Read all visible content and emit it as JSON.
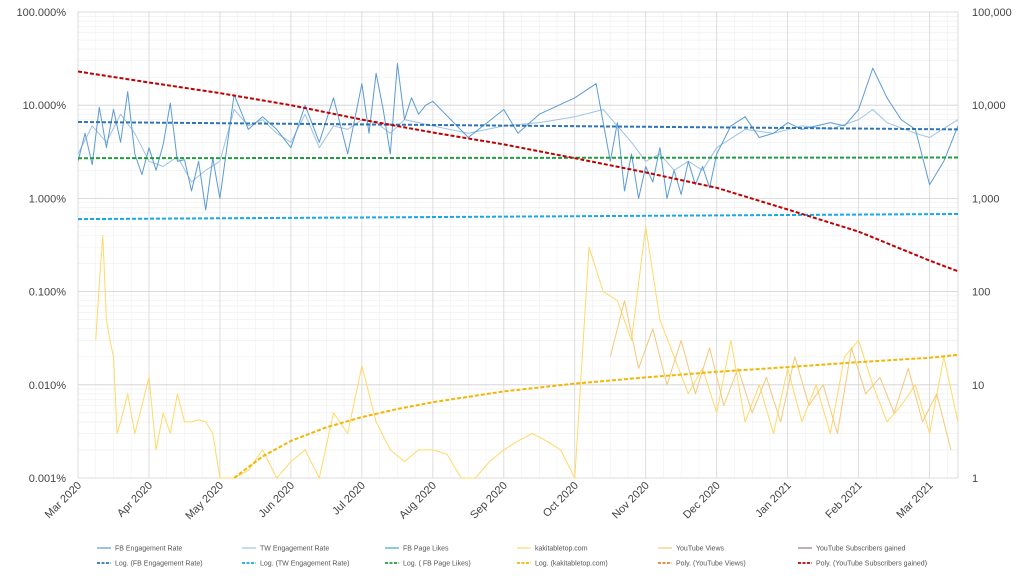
{
  "chart_data": {
    "type": "line",
    "title": "",
    "xlabel": "",
    "ylabel": "",
    "grid": true,
    "legend_position": "bottom",
    "x_tick_labels": [
      "Mar 2020",
      "Apr 2020",
      "May 2020",
      "Jun 2020",
      "Jul 2020",
      "Aug 2020",
      "Sep 2020",
      "Oct 2020",
      "Nov 2020",
      "Dec 2020",
      "Jan 2021",
      "Feb 2021",
      "Mar 2021"
    ],
    "y_left": {
      "scale": "log",
      "range": [
        0.001,
        100
      ],
      "tick_labels": [
        "100.000%",
        "10.000%",
        "1.000%",
        "0.100%",
        "0.010%",
        "0.001%"
      ]
    },
    "y_right": {
      "scale": "log",
      "range": [
        1,
        100000
      ],
      "tick_labels": [
        "100,000",
        "10,000",
        "1,000",
        "100",
        "10",
        "1"
      ]
    },
    "series": [
      {
        "name": "FB Engagement Rate",
        "color": "#5b9bd5",
        "style": "solid",
        "axis": "left",
        "x": [
          0.0,
          0.1,
          0.2,
          0.3,
          0.4,
          0.5,
          0.6,
          0.7,
          0.8,
          0.9,
          1.0,
          1.1,
          1.2,
          1.3,
          1.4,
          1.5,
          1.6,
          1.7,
          1.8,
          1.9,
          2.0,
          2.2,
          2.4,
          2.6,
          2.8,
          3.0,
          3.2,
          3.4,
          3.6,
          3.8,
          4.0,
          4.1,
          4.2,
          4.3,
          4.4,
          4.5,
          4.6,
          4.7,
          4.8,
          4.9,
          5.0,
          5.5,
          6.0,
          6.2,
          6.5,
          7.0,
          7.3,
          7.5,
          7.6,
          7.7,
          7.8,
          7.9,
          8.0,
          8.1,
          8.2,
          8.3,
          8.4,
          8.5,
          8.6,
          8.7,
          8.8,
          8.9,
          9.0,
          9.2,
          9.4,
          9.6,
          9.8,
          10.0,
          10.2,
          10.4,
          10.6,
          10.8,
          11.0,
          11.2,
          11.4,
          11.6,
          11.8,
          12.0,
          12.2,
          12.4
        ],
        "y": [
          2.5,
          5.0,
          2.3,
          9.5,
          3.5,
          9.0,
          4.0,
          14.0,
          3.0,
          1.8,
          3.5,
          2.0,
          3.8,
          10.5,
          2.5,
          2.6,
          1.2,
          2.5,
          0.75,
          2.7,
          1.0,
          13.0,
          5.5,
          7.5,
          5.5,
          3.5,
          10.0,
          4.0,
          12.0,
          3.0,
          17.0,
          5.0,
          22.0,
          9.0,
          3.0,
          28.0,
          7.0,
          12.0,
          8.0,
          10.0,
          11.0,
          4.5,
          9.0,
          5.0,
          8.0,
          12.0,
          17.0,
          2.5,
          6.5,
          1.2,
          3.0,
          1.0,
          2.2,
          1.5,
          3.5,
          1.0,
          2.0,
          1.1,
          2.5,
          1.4,
          2.2,
          1.3,
          3.0,
          6.0,
          7.5,
          4.5,
          5.0,
          6.5,
          5.5,
          6.0,
          6.5,
          6.0,
          9.0,
          25.0,
          12.0,
          7.0,
          5.5,
          1.4,
          2.5,
          6.0
        ]
      },
      {
        "name": "TW Engagement Rate",
        "color": "#9dc3e6",
        "style": "solid",
        "axis": "left",
        "x": [
          0.0,
          0.2,
          0.4,
          0.6,
          0.8,
          1.0,
          1.2,
          1.4,
          1.6,
          1.8,
          2.0,
          2.2,
          2.4,
          2.6,
          2.8,
          3.0,
          3.2,
          3.4,
          3.6,
          3.8,
          4.0,
          4.2,
          4.4,
          4.6,
          4.8,
          5.0,
          5.5,
          6.0,
          6.5,
          7.0,
          7.4,
          7.6,
          7.8,
          8.0,
          8.2,
          8.4,
          8.6,
          8.8,
          9.0,
          9.4,
          9.8,
          10.2,
          10.6,
          11.0,
          11.2,
          11.4,
          11.8,
          12.0,
          12.4
        ],
        "y": [
          3.0,
          6.0,
          4.0,
          8.0,
          5.0,
          2.5,
          2.2,
          2.8,
          1.5,
          2.0,
          2.5,
          9.0,
          6.0,
          7.0,
          5.0,
          4.0,
          8.0,
          3.5,
          6.0,
          5.5,
          7.0,
          6.5,
          5.0,
          7.0,
          6.5,
          6.0,
          5.0,
          6.0,
          6.5,
          7.5,
          9.0,
          6.0,
          4.0,
          2.5,
          3.0,
          2.0,
          2.5,
          2.0,
          3.5,
          5.5,
          5.0,
          6.0,
          5.5,
          7.0,
          9.0,
          6.5,
          5.0,
          4.5,
          7.0
        ]
      },
      {
        "name": "FB Page Likes",
        "color": "#41a8c9",
        "style": "solid",
        "axis": "right",
        "x": [],
        "y": []
      },
      {
        "name": "kakitabletop.com",
        "color": "#ffd966",
        "style": "solid",
        "axis": "left",
        "x": [
          0.25,
          0.3,
          0.35,
          0.4,
          0.45,
          0.5,
          0.55,
          0.6,
          0.7,
          0.8,
          0.9,
          1.0,
          1.1,
          1.2,
          1.3,
          1.4,
          1.5,
          1.6,
          1.7,
          1.8,
          1.9,
          2.0,
          2.2,
          2.4,
          2.6,
          2.8,
          3.0,
          3.2,
          3.4,
          3.6,
          3.8,
          4.0,
          4.2,
          4.4,
          4.6,
          4.8,
          5.0,
          5.2,
          5.4,
          5.6,
          5.8,
          6.0,
          6.2,
          6.4,
          6.6,
          6.8,
          7.0,
          7.2,
          7.4,
          7.6,
          7.8,
          8.0,
          8.2,
          8.4,
          8.6,
          8.8,
          9.0,
          9.2,
          9.4,
          9.6,
          9.8,
          10.0,
          10.2,
          10.4,
          10.6,
          10.8,
          11.0,
          11.2,
          11.4,
          11.6,
          11.8,
          12.0,
          12.2,
          12.4
        ],
        "y": [
          0.03,
          0.12,
          0.4,
          0.05,
          0.03,
          0.02,
          0.003,
          0.004,
          0.008,
          0.003,
          0.006,
          0.012,
          0.002,
          0.005,
          0.003,
          0.008,
          0.004,
          0.004,
          0.0042,
          0.004,
          0.003,
          0.001,
          0.001,
          0.0012,
          0.002,
          0.001,
          0.0015,
          0.002,
          0.001,
          0.005,
          0.003,
          0.016,
          0.004,
          0.002,
          0.0015,
          0.002,
          0.002,
          0.0018,
          0.001,
          0.001,
          0.0015,
          0.002,
          0.0025,
          0.003,
          0.0025,
          0.002,
          0.001,
          0.3,
          0.1,
          0.08,
          0.03,
          0.5,
          0.05,
          0.02,
          0.008,
          0.015,
          0.005,
          0.03,
          0.004,
          0.01,
          0.003,
          0.015,
          0.004,
          0.01,
          0.003,
          0.02,
          0.03,
          0.01,
          0.004,
          0.006,
          0.01,
          0.003,
          0.02,
          0.004
        ]
      },
      {
        "name": "YouTube Views",
        "color": "#f4c87a",
        "style": "solid",
        "axis": "right",
        "x": [
          7.5,
          7.7,
          7.9,
          8.1,
          8.3,
          8.5,
          8.7,
          8.9,
          9.1,
          9.3,
          9.5,
          9.7,
          9.9,
          10.1,
          10.3,
          10.5,
          10.7,
          10.9,
          11.1,
          11.3,
          11.5,
          11.7,
          11.9,
          12.1,
          12.3
        ],
        "y": [
          20,
          80,
          15,
          40,
          10,
          30,
          8,
          25,
          6,
          15,
          5,
          12,
          4,
          20,
          6,
          10,
          3,
          25,
          8,
          12,
          5,
          15,
          4,
          8,
          2
        ]
      },
      {
        "name": "YouTube Subscribers gained",
        "color": "#9a7b7b",
        "style": "solid",
        "axis": "right",
        "x": [],
        "y": []
      },
      {
        "name": "Log. (FB Engagement Rate)",
        "color": "#2e75b6",
        "style": "dashed",
        "axis": "left",
        "x": [
          0,
          12.4
        ],
        "y": [
          6.6,
          5.5
        ]
      },
      {
        "name": "Log. (TW Engagement Rate)",
        "color": "#17a9e1",
        "style": "dashed",
        "axis": "left",
        "x": [
          0,
          12.4
        ],
        "y": [
          0.6,
          0.68
        ]
      },
      {
        "name": "Log. ( FB Page Likes)",
        "color": "#1e9e3e",
        "style": "dashed",
        "axis": "right",
        "x": [
          0,
          12.4
        ],
        "y": [
          2700,
          2750
        ]
      },
      {
        "name": "Log. (kakitabletop.com)",
        "color": "#f2b705",
        "style": "dashed",
        "axis": "left",
        "x": [
          2.2,
          2.6,
          3.0,
          3.5,
          4.0,
          4.5,
          5.0,
          6.0,
          7.0,
          8.0,
          9.0,
          10.0,
          11.0,
          12.0,
          12.4
        ],
        "y": [
          0.001,
          0.0017,
          0.0025,
          0.0035,
          0.0045,
          0.0055,
          0.0065,
          0.0085,
          0.0103,
          0.012,
          0.0138,
          0.0155,
          0.0175,
          0.0195,
          0.021
        ]
      },
      {
        "name": "Poly. (YouTube Views)",
        "color": "#ed7d31",
        "style": "dashed",
        "axis": "right",
        "x": [],
        "y": []
      },
      {
        "name": "Poly. (YouTube Subscribers gained)",
        "color": "#c00000",
        "style": "dashed",
        "axis": "right",
        "x": [
          0,
          1,
          2,
          3,
          4,
          5,
          6,
          7,
          8,
          9,
          10,
          11,
          12,
          12.4
        ],
        "y": [
          23000,
          17500,
          13500,
          10000,
          7000,
          5100,
          3800,
          2700,
          1900,
          1300,
          760,
          440,
          215,
          165
        ]
      }
    ]
  }
}
